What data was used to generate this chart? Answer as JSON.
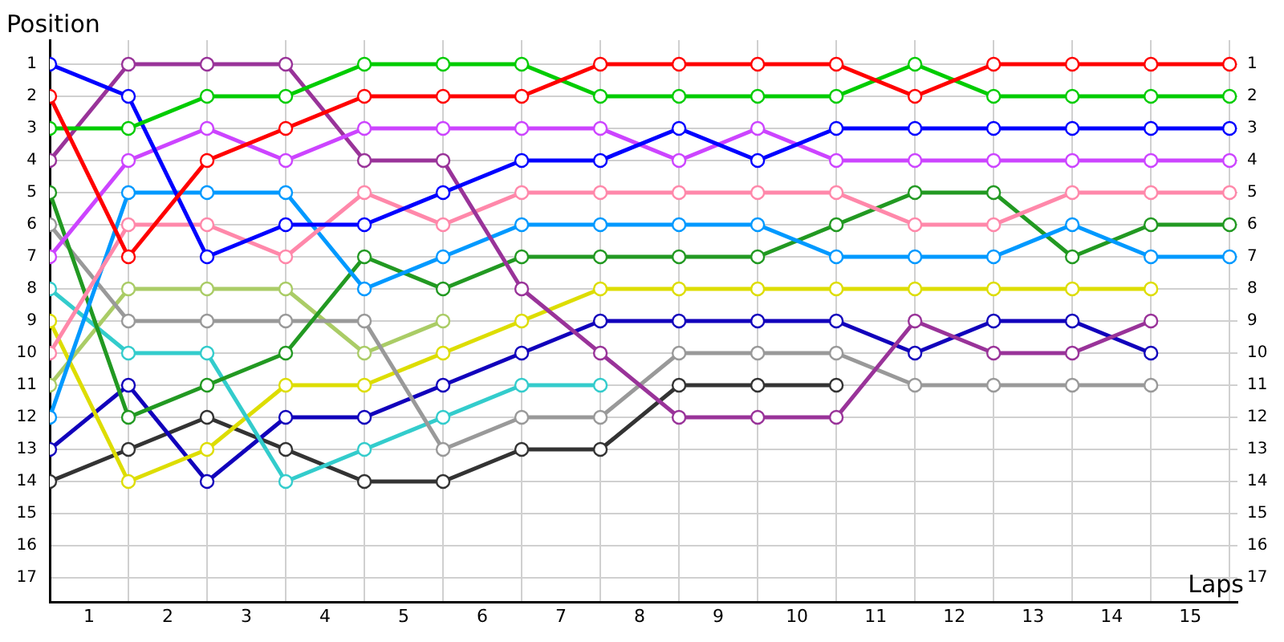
{
  "chart_data": {
    "type": "line",
    "xlabel": "Laps",
    "ylabel": "Position",
    "x": [
      0,
      1,
      2,
      3,
      4,
      5,
      6,
      7,
      8,
      9,
      10,
      11,
      12,
      13,
      14,
      15
    ],
    "xlim": [
      0,
      15.1
    ],
    "xticks": [
      {
        "value": 0,
        "label": null
      },
      {
        "value": 0.5,
        "label": "1"
      },
      {
        "value": 1,
        "label": null
      },
      {
        "value": 1.5,
        "label": "2"
      },
      {
        "value": 2,
        "label": null
      },
      {
        "value": 2.5,
        "label": "3"
      },
      {
        "value": 3,
        "label": null
      },
      {
        "value": 3.5,
        "label": "4"
      },
      {
        "value": 4,
        "label": null
      },
      {
        "value": 4.5,
        "label": "5"
      },
      {
        "value": 5,
        "label": null
      },
      {
        "value": 5.5,
        "label": "6"
      },
      {
        "value": 6,
        "label": null
      },
      {
        "value": 6.5,
        "label": "7"
      },
      {
        "value": 7,
        "label": null
      },
      {
        "value": 7.5,
        "label": "8"
      },
      {
        "value": 8,
        "label": null
      },
      {
        "value": 8.5,
        "label": "9"
      },
      {
        "value": 9,
        "label": null
      },
      {
        "value": 9.5,
        "label": "10"
      },
      {
        "value": 10,
        "label": null
      },
      {
        "value": 10.5,
        "label": "11"
      },
      {
        "value": 11,
        "label": null
      },
      {
        "value": 11.5,
        "label": "12"
      },
      {
        "value": 12,
        "label": null
      },
      {
        "value": 12.5,
        "label": "13"
      },
      {
        "value": 13,
        "label": null
      },
      {
        "value": 13.5,
        "label": "14"
      },
      {
        "value": 14,
        "label": null
      },
      {
        "value": 14.5,
        "label": "15"
      },
      {
        "value": 15,
        "label": null
      }
    ],
    "ylim": [
      17.75,
      0.25
    ],
    "yticks": [
      1,
      2,
      3,
      4,
      5,
      6,
      7,
      8,
      9,
      10,
      11,
      12,
      13,
      14,
      15,
      16,
      17
    ],
    "y2lim": [
      17.75,
      0.25
    ],
    "y2ticks": [
      1,
      2,
      3,
      4,
      5,
      6,
      7,
      8,
      9,
      10,
      11,
      12,
      13,
      14,
      15,
      16,
      17
    ],
    "grid": true,
    "legend": false,
    "marker": "circle",
    "line_style": "solid",
    "series": [
      {
        "color": "#ff0000",
        "values": [
          2,
          7,
          4,
          3,
          2,
          2,
          2,
          1,
          1,
          1,
          1,
          2,
          1,
          1,
          1,
          1
        ]
      },
      {
        "color": "#00cc00",
        "values": [
          3,
          3,
          2,
          2,
          1,
          1,
          1,
          2,
          2,
          2,
          2,
          1,
          2,
          2,
          2,
          2
        ]
      },
      {
        "color": "#0000ff",
        "values": [
          1,
          2,
          7,
          6,
          6,
          5,
          4,
          4,
          3,
          4,
          3,
          3,
          3,
          3,
          3,
          3
        ]
      },
      {
        "color": "#cc44ff",
        "values": [
          7,
          4,
          3,
          4,
          3,
          3,
          3,
          3,
          4,
          3,
          4,
          4,
          4,
          4,
          4,
          4
        ]
      },
      {
        "color": "#993399",
        "values": [
          4,
          1,
          1,
          1,
          4,
          4,
          8,
          10,
          12,
          12,
          12,
          9,
          10,
          10,
          9,
          null
        ]
      },
      {
        "color": "#ff88aa",
        "values": [
          10,
          6,
          6,
          7,
          5,
          6,
          5,
          5,
          5,
          5,
          5,
          6,
          6,
          5,
          5,
          5
        ]
      },
      {
        "color": "#0099ff",
        "values": [
          12,
          5,
          5,
          5,
          8,
          7,
          6,
          6,
          6,
          6,
          7,
          7,
          7,
          6,
          7,
          7
        ]
      },
      {
        "color": "#229922",
        "values": [
          5,
          12,
          11,
          10,
          7,
          8,
          7,
          7,
          7,
          7,
          6,
          5,
          5,
          7,
          6,
          6
        ]
      },
      {
        "color": "#999999",
        "values": [
          6,
          9,
          9,
          9,
          9,
          13,
          12,
          12,
          10,
          10,
          10,
          11,
          11,
          11,
          11,
          null
        ]
      },
      {
        "color": "#33cccc",
        "values": [
          8,
          10,
          10,
          14,
          13,
          12,
          11,
          11,
          null,
          null,
          null,
          null,
          null,
          null,
          null,
          null
        ]
      },
      {
        "color": "#aacc66",
        "values": [
          11,
          8,
          8,
          8,
          10,
          9,
          null,
          null,
          null,
          null,
          null,
          null,
          null,
          null,
          null,
          null
        ]
      },
      {
        "color": "#dddd00",
        "values": [
          9,
          14,
          13,
          11,
          11,
          10,
          9,
          8,
          8,
          8,
          8,
          8,
          8,
          8,
          8,
          null
        ]
      },
      {
        "color": "#1100bb",
        "values": [
          13,
          11,
          14,
          12,
          12,
          11,
          10,
          9,
          9,
          9,
          9,
          10,
          9,
          9,
          10,
          null
        ]
      },
      {
        "color": "#333333",
        "values": [
          14,
          13,
          12,
          13,
          14,
          14,
          13,
          13,
          11,
          11,
          11,
          null,
          null,
          null,
          null,
          null
        ]
      }
    ]
  }
}
